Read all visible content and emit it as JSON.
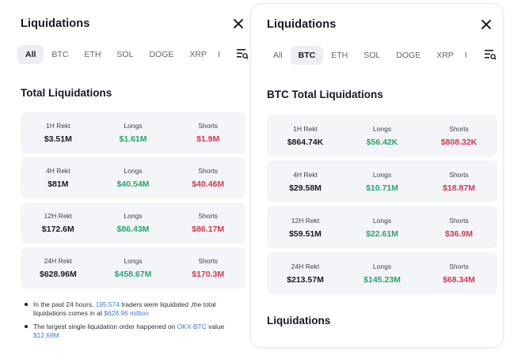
{
  "left": {
    "title": "Liquidations",
    "tabs": [
      "All",
      "BTC",
      "ETH",
      "SOL",
      "DOGE",
      "XRP",
      "I"
    ],
    "active_tab": "All",
    "section_title": "Total Liquidations",
    "rows": [
      {
        "period": "1H Rekt",
        "total": "$3.51M",
        "longs_label": "Longs",
        "longs": "$1.61M",
        "shorts_label": "Shorts",
        "shorts": "$1.9M"
      },
      {
        "period": "4H Rekt",
        "total": "$81M",
        "longs_label": "Longs",
        "longs": "$40.54M",
        "shorts_label": "Shorts",
        "shorts": "$40.46M"
      },
      {
        "period": "12H Rekt",
        "total": "$172.6M",
        "longs_label": "Longs",
        "longs": "$86.43M",
        "shorts_label": "Shorts",
        "shorts": "$86.17M"
      },
      {
        "period": "24H Rekt",
        "total": "$628.96M",
        "longs_label": "Longs",
        "longs": "$458.67M",
        "shorts_label": "Shorts",
        "shorts": "$170.3M"
      }
    ],
    "note1": {
      "pre": "In the past 24 hours, ",
      "traders": "195,574",
      "mid": " traders were liquidated ,the total liquidations comes in at ",
      "amount": "$628.96 million"
    },
    "note2": {
      "pre": "The largest single liquidation order happened on ",
      "pair": "OKX-BTC",
      "mid": " value ",
      "amount": "$12.69M"
    }
  },
  "right": {
    "title": "Liquidations",
    "tabs": [
      "All",
      "BTC",
      "ETH",
      "SOL",
      "DOGE",
      "XRP",
      "I"
    ],
    "active_tab": "BTC",
    "section_title": "BTC Total Liquidations",
    "rows": [
      {
        "period": "1H Rekt",
        "total": "$864.74K",
        "longs_label": "Longs",
        "longs": "$56.42K",
        "shorts_label": "Shorts",
        "shorts": "$808.32K"
      },
      {
        "period": "4H Rekt",
        "total": "$29.58M",
        "longs_label": "Longs",
        "longs": "$10.71M",
        "shorts_label": "Shorts",
        "shorts": "$18.87M"
      },
      {
        "period": "12H Rekt",
        "total": "$59.51M",
        "longs_label": "Longs",
        "longs": "$22.61M",
        "shorts_label": "Shorts",
        "shorts": "$36.9M"
      },
      {
        "period": "24H Rekt",
        "total": "$213.57M",
        "longs_label": "Longs",
        "longs": "$145.23M",
        "shorts_label": "Shorts",
        "shorts": "$68.34M"
      }
    ],
    "section_title_2": "Liquidations"
  },
  "icons": {
    "close": "close-icon",
    "filter": "filter-list-icon"
  },
  "colors": {
    "long": "#27a56a",
    "short": "#d8354f",
    "link": "#3a7bd5",
    "card_bg": "#f3f5f9"
  }
}
